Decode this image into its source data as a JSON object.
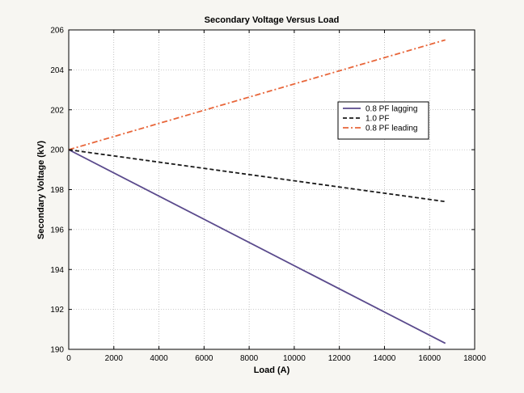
{
  "chart_data": {
    "type": "line",
    "title": "Secondary Voltage Versus Load",
    "xlabel": "Load (A)",
    "ylabel": "Secondary Voltage (kV)",
    "xlim": [
      0,
      18000
    ],
    "ylim": [
      190,
      206
    ],
    "xticks": [
      0,
      2000,
      4000,
      6000,
      8000,
      10000,
      12000,
      14000,
      16000,
      18000
    ],
    "yticks": [
      190,
      192,
      194,
      196,
      198,
      200,
      202,
      204,
      206
    ],
    "grid": true,
    "legend_position": "upper-right",
    "series": [
      {
        "name": "0.8 PF lagging",
        "color": "#5a4a8c",
        "dash": "solid",
        "x": [
          0,
          16700
        ],
        "y": [
          200.0,
          190.3
        ]
      },
      {
        "name": "1.0 PF",
        "color": "#1a1a1a",
        "dash": "dashed",
        "x": [
          0,
          16700
        ],
        "y": [
          200.0,
          197.4
        ]
      },
      {
        "name": "0.8 PF leading",
        "color": "#e8663a",
        "dash": "dashdot",
        "x": [
          0,
          16700
        ],
        "y": [
          200.0,
          205.5
        ]
      }
    ]
  }
}
